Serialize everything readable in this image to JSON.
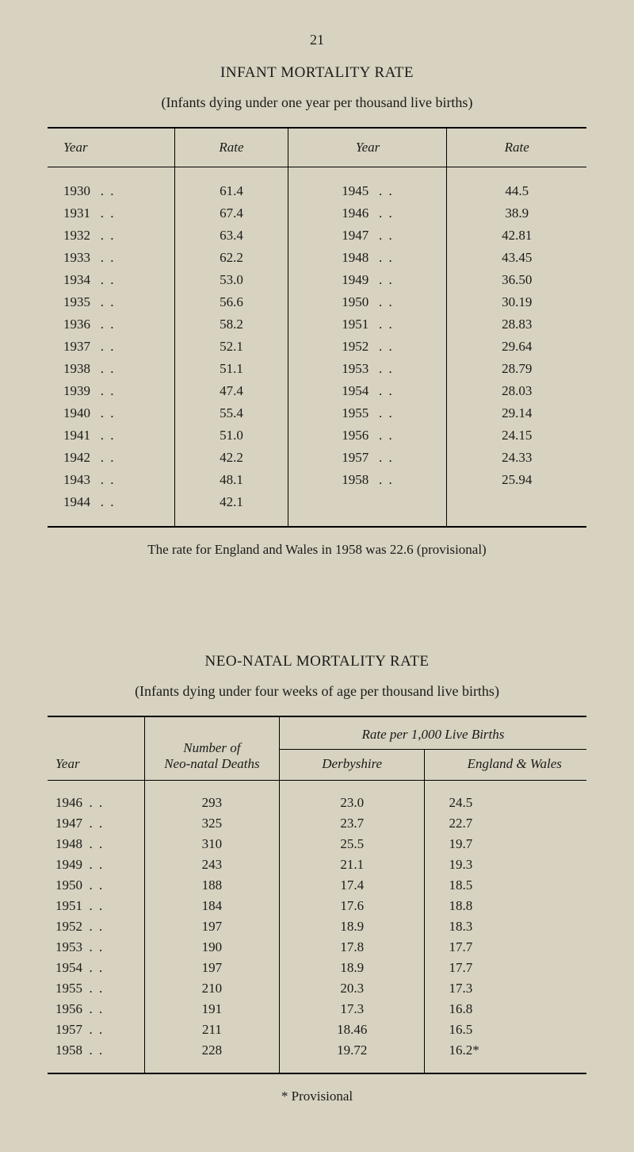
{
  "page_number": "21",
  "section1": {
    "title": "INFANT MORTALITY RATE",
    "subtitle": "(Infants dying under one year per thousand live births)",
    "headers": {
      "year1": "Year",
      "rate1": "Rate",
      "year2": "Year",
      "rate2": "Rate"
    },
    "rows": [
      {
        "y1": "1930",
        "r1": "61.4",
        "y2": "1945",
        "r2": "44.5"
      },
      {
        "y1": "1931",
        "r1": "67.4",
        "y2": "1946",
        "r2": "38.9"
      },
      {
        "y1": "1932",
        "r1": "63.4",
        "y2": "1947",
        "r2": "42.81"
      },
      {
        "y1": "1933",
        "r1": "62.2",
        "y2": "1948",
        "r2": "43.45"
      },
      {
        "y1": "1934",
        "r1": "53.0",
        "y2": "1949",
        "r2": "36.50"
      },
      {
        "y1": "1935",
        "r1": "56.6",
        "y2": "1950",
        "r2": "30.19"
      },
      {
        "y1": "1936",
        "r1": "58.2",
        "y2": "1951",
        "r2": "28.83"
      },
      {
        "y1": "1937",
        "r1": "52.1",
        "y2": "1952",
        "r2": "29.64"
      },
      {
        "y1": "1938",
        "r1": "51.1",
        "y2": "1953",
        "r2": "28.79"
      },
      {
        "y1": "1939",
        "r1": "47.4",
        "y2": "1954",
        "r2": "28.03"
      },
      {
        "y1": "1940",
        "r1": "55.4",
        "y2": "1955",
        "r2": "29.14"
      },
      {
        "y1": "1941",
        "r1": "51.0",
        "y2": "1956",
        "r2": "24.15"
      },
      {
        "y1": "1942",
        "r1": "42.2",
        "y2": "1957",
        "r2": "24.33"
      },
      {
        "y1": "1943",
        "r1": "48.1",
        "y2": "1958",
        "r2": "25.94"
      },
      {
        "y1": "1944",
        "r1": "42.1",
        "y2": "",
        "r2": ""
      }
    ],
    "note": "The rate for England and Wales in 1958 was 22.6 (provisional)"
  },
  "section2": {
    "title": "NEO-NATAL MORTALITY RATE",
    "subtitle": "(Infants dying under four weeks of age per thousand live births)",
    "headers": {
      "year": "Year",
      "deaths": "Number of\nNeo-natal Deaths",
      "deaths_l1": "Number of",
      "deaths_l2": "Neo-natal Deaths",
      "rate_span": "Rate per 1,000 Live Births",
      "derby": "Derbyshire",
      "ew": "England & Wales"
    },
    "rows": [
      {
        "y": "1946",
        "d": "293",
        "db": "23.0",
        "ew": "24.5"
      },
      {
        "y": "1947",
        "d": "325",
        "db": "23.7",
        "ew": "22.7"
      },
      {
        "y": "1948",
        "d": "310",
        "db": "25.5",
        "ew": "19.7"
      },
      {
        "y": "1949",
        "d": "243",
        "db": "21.1",
        "ew": "19.3"
      },
      {
        "y": "1950",
        "d": "188",
        "db": "17.4",
        "ew": "18.5"
      },
      {
        "y": "1951",
        "d": "184",
        "db": "17.6",
        "ew": "18.8"
      },
      {
        "y": "1952",
        "d": "197",
        "db": "18.9",
        "ew": "18.3"
      },
      {
        "y": "1953",
        "d": "190",
        "db": "17.8",
        "ew": "17.7"
      },
      {
        "y": "1954",
        "d": "197",
        "db": "18.9",
        "ew": "17.7"
      },
      {
        "y": "1955",
        "d": "210",
        "db": "20.3",
        "ew": "17.3"
      },
      {
        "y": "1956",
        "d": "191",
        "db": "17.3",
        "ew": "16.8"
      },
      {
        "y": "1957",
        "d": "211",
        "db": "18.46",
        "ew": "16.5"
      },
      {
        "y": "1958",
        "d": "228",
        "db": "19.72",
        "ew": "16.2*"
      }
    ],
    "footnote": "* Provisional"
  },
  "colors": {
    "background": "#d8d3c0",
    "text": "#1a1a1a",
    "rule": "#000000"
  },
  "dots": ". ."
}
